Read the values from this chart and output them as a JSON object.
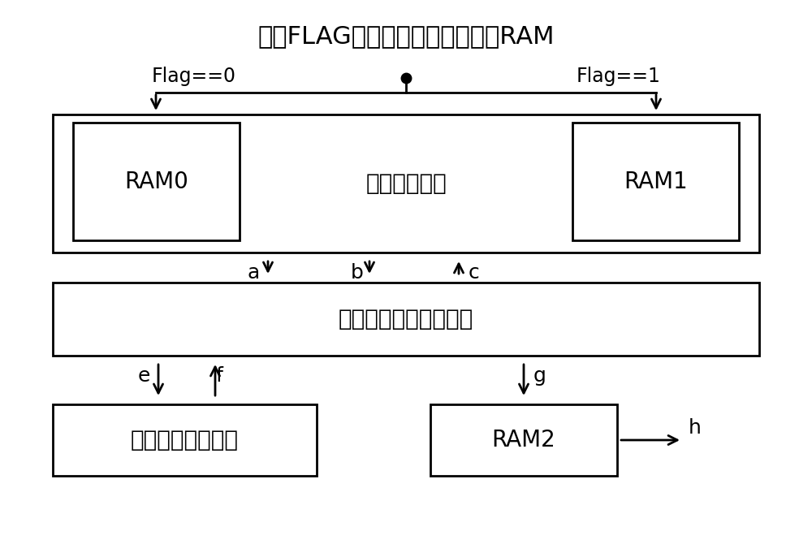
{
  "title": "根据FLAG将待译码信息写入对应RAM",
  "title_fontsize": 22,
  "label_flag0": "Flag==0",
  "label_flag1": "Flag==1",
  "box_ping_pong_label": "乒乓控制逻辑",
  "box_ram0_label": "RAM0",
  "box_ram1_label": "RAM1",
  "box_core_label": "核心译码算术逻辑单元",
  "box_iter_label": "迭代终止判决单元",
  "box_ram2_label": "RAM2",
  "bg_color": "#ffffff",
  "box_color": "#ffffff",
  "line_color": "#000000",
  "font_color": "#000000",
  "chinese_fontsize": 20,
  "ram_fontsize": 20,
  "small_fontsize": 17,
  "label_fontsize": 18,
  "lw": 2.0
}
